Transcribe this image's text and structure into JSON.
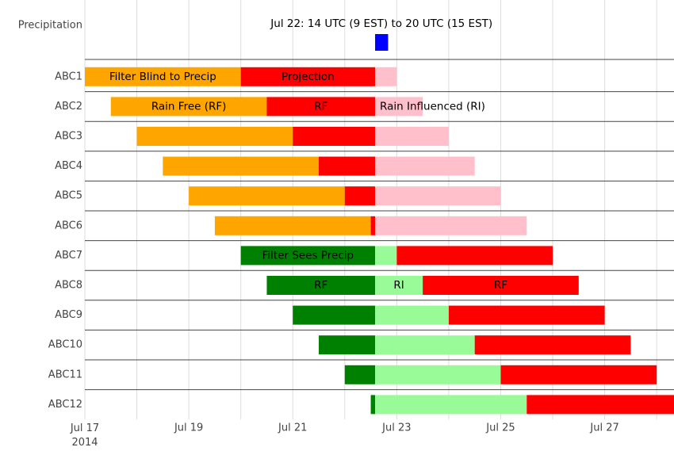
{
  "chart_data": {
    "type": "timeline",
    "precipitation": {
      "label": "Precipitation",
      "annotation": "Jul 22: 14 UTC (9 EST) to 20 UTC (15 EST)",
      "start": "2014-07-22T14:00Z",
      "end": "2014-07-22T20:00Z",
      "color": "#0000ff"
    },
    "xlim": [
      "2014-07-17T00:00Z",
      "2014-07-28T08:00Z"
    ],
    "xticks": [
      {
        "value": "2014-07-17T00:00Z",
        "label": "Jul 17\n2014"
      },
      {
        "value": "2014-07-19T00:00Z",
        "label": "Jul 19"
      },
      {
        "value": "2014-07-21T00:00Z",
        "label": "Jul 21"
      },
      {
        "value": "2014-07-23T00:00Z",
        "label": "Jul 23"
      },
      {
        "value": "2014-07-25T00:00Z",
        "label": "Jul 25"
      },
      {
        "value": "2014-07-27T00:00Z",
        "label": "Jul 27"
      }
    ],
    "minor_xticks": [
      "2014-07-18T00:00Z",
      "2014-07-20T00:00Z",
      "2014-07-22T00:00Z",
      "2014-07-24T00:00Z",
      "2014-07-26T00:00Z",
      "2014-07-28T00:00Z"
    ],
    "grid": true,
    "rows": [
      {
        "name": "ABC1",
        "segments": [
          {
            "start": "2014-07-17T00:00Z",
            "end": "2014-07-20T00:00Z",
            "color": "#ffa500",
            "label": "Filter Blind to Precip"
          },
          {
            "start": "2014-07-20T00:00Z",
            "end": "2014-07-22T14:00Z",
            "color": "#ff0000",
            "label": "Projection"
          },
          {
            "start": "2014-07-22T14:00Z",
            "end": "2014-07-23T00:00Z",
            "color": "#ffc0cb"
          }
        ]
      },
      {
        "name": "ABC2",
        "segments": [
          {
            "start": "2014-07-17T12:00Z",
            "end": "2014-07-20T12:00Z",
            "color": "#ffa500",
            "label": "Rain Free (RF)"
          },
          {
            "start": "2014-07-20T12:00Z",
            "end": "2014-07-22T14:00Z",
            "color": "#ff0000",
            "label": "RF"
          },
          {
            "start": "2014-07-22T14:00Z",
            "end": "2014-07-23T12:00Z",
            "color": "#ffc0cb",
            "label": "Rain Influenced (RI)"
          }
        ]
      },
      {
        "name": "ABC3",
        "segments": [
          {
            "start": "2014-07-18T00:00Z",
            "end": "2014-07-21T00:00Z",
            "color": "#ffa500"
          },
          {
            "start": "2014-07-21T00:00Z",
            "end": "2014-07-22T14:00Z",
            "color": "#ff0000"
          },
          {
            "start": "2014-07-22T14:00Z",
            "end": "2014-07-24T00:00Z",
            "color": "#ffc0cb"
          }
        ]
      },
      {
        "name": "ABC4",
        "segments": [
          {
            "start": "2014-07-18T12:00Z",
            "end": "2014-07-21T12:00Z",
            "color": "#ffa500"
          },
          {
            "start": "2014-07-21T12:00Z",
            "end": "2014-07-22T14:00Z",
            "color": "#ff0000"
          },
          {
            "start": "2014-07-22T14:00Z",
            "end": "2014-07-24T12:00Z",
            "color": "#ffc0cb"
          }
        ]
      },
      {
        "name": "ABC5",
        "segments": [
          {
            "start": "2014-07-19T00:00Z",
            "end": "2014-07-22T00:00Z",
            "color": "#ffa500"
          },
          {
            "start": "2014-07-22T00:00Z",
            "end": "2014-07-22T14:00Z",
            "color": "#ff0000"
          },
          {
            "start": "2014-07-22T14:00Z",
            "end": "2014-07-25T00:00Z",
            "color": "#ffc0cb"
          }
        ]
      },
      {
        "name": "ABC6",
        "segments": [
          {
            "start": "2014-07-19T12:00Z",
            "end": "2014-07-22T12:00Z",
            "color": "#ffa500"
          },
          {
            "start": "2014-07-22T12:00Z",
            "end": "2014-07-22T14:00Z",
            "color": "#ff0000"
          },
          {
            "start": "2014-07-22T14:00Z",
            "end": "2014-07-25T12:00Z",
            "color": "#ffc0cb"
          }
        ]
      },
      {
        "name": "ABC7",
        "segments": [
          {
            "start": "2014-07-20T00:00Z",
            "end": "2014-07-22T14:00Z",
            "color": "#008000",
            "label": "Filter Sees Precip"
          },
          {
            "start": "2014-07-22T14:00Z",
            "end": "2014-07-23T00:00Z",
            "color": "#98fb98"
          },
          {
            "start": "2014-07-23T00:00Z",
            "end": "2014-07-26T00:00Z",
            "color": "#ff0000"
          }
        ]
      },
      {
        "name": "ABC8",
        "segments": [
          {
            "start": "2014-07-20T12:00Z",
            "end": "2014-07-22T14:00Z",
            "color": "#008000",
            "label": "RF"
          },
          {
            "start": "2014-07-22T14:00Z",
            "end": "2014-07-23T12:00Z",
            "color": "#98fb98",
            "label": "RI"
          },
          {
            "start": "2014-07-23T12:00Z",
            "end": "2014-07-26T12:00Z",
            "color": "#ff0000",
            "label": "RF"
          }
        ]
      },
      {
        "name": "ABC9",
        "segments": [
          {
            "start": "2014-07-21T00:00Z",
            "end": "2014-07-22T14:00Z",
            "color": "#008000"
          },
          {
            "start": "2014-07-22T14:00Z",
            "end": "2014-07-24T00:00Z",
            "color": "#98fb98"
          },
          {
            "start": "2014-07-24T00:00Z",
            "end": "2014-07-27T00:00Z",
            "color": "#ff0000"
          }
        ]
      },
      {
        "name": "ABC10",
        "segments": [
          {
            "start": "2014-07-21T12:00Z",
            "end": "2014-07-22T14:00Z",
            "color": "#008000"
          },
          {
            "start": "2014-07-22T14:00Z",
            "end": "2014-07-24T12:00Z",
            "color": "#98fb98"
          },
          {
            "start": "2014-07-24T12:00Z",
            "end": "2014-07-27T12:00Z",
            "color": "#ff0000"
          }
        ]
      },
      {
        "name": "ABC11",
        "segments": [
          {
            "start": "2014-07-22T00:00Z",
            "end": "2014-07-22T14:00Z",
            "color": "#008000"
          },
          {
            "start": "2014-07-22T14:00Z",
            "end": "2014-07-25T00:00Z",
            "color": "#98fb98"
          },
          {
            "start": "2014-07-25T00:00Z",
            "end": "2014-07-28T00:00Z",
            "color": "#ff0000"
          }
        ]
      },
      {
        "name": "ABC12",
        "segments": [
          {
            "start": "2014-07-22T12:00Z",
            "end": "2014-07-22T14:00Z",
            "color": "#008000"
          },
          {
            "start": "2014-07-22T14:00Z",
            "end": "2014-07-25T12:00Z",
            "color": "#98fb98"
          },
          {
            "start": "2014-07-25T12:00Z",
            "end": "2014-07-28T12:00Z",
            "color": "#ff0000"
          }
        ]
      }
    ]
  }
}
